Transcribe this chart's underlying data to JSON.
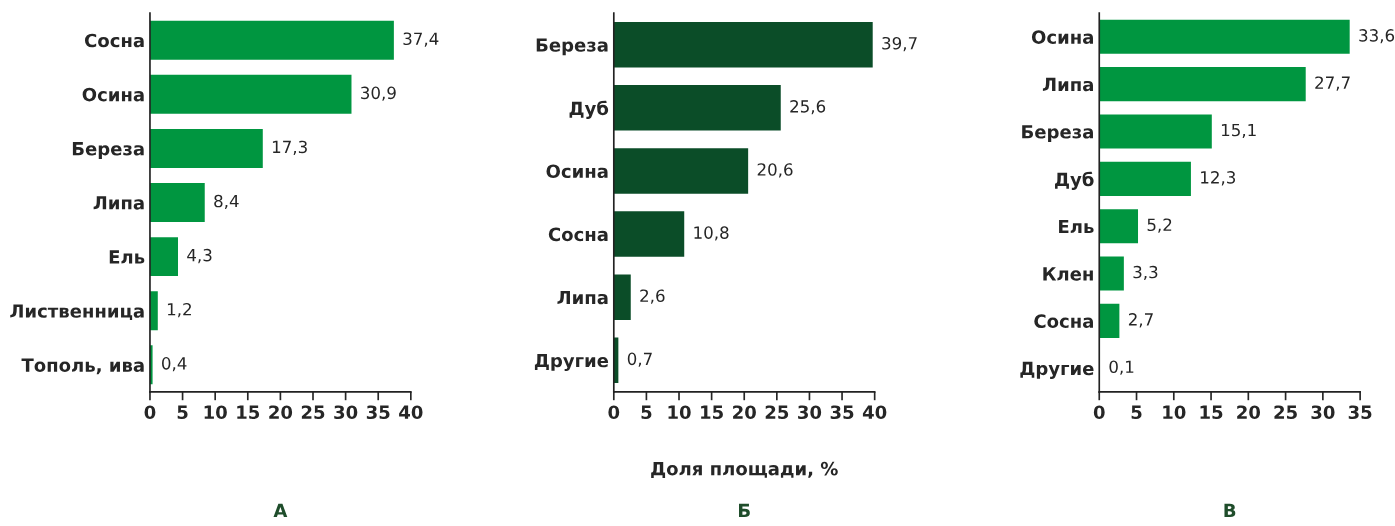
{
  "chart_data": [
    {
      "type": "bar",
      "orientation": "horizontal",
      "categories": [
        "Сосна",
        "Осина",
        "Береза",
        "Липа",
        "Ель",
        "Лиственница",
        "Тополь, ива"
      ],
      "values": [
        37.4,
        30.9,
        17.3,
        8.4,
        4.3,
        1.2,
        0.4
      ],
      "value_labels": [
        "37,4",
        "30,9",
        "17,3",
        "8,4",
        "4,3",
        "1,2",
        "0,4"
      ],
      "color": "#009640",
      "xlim": [
        0,
        40
      ],
      "xticks": [
        0,
        5,
        10,
        15,
        20,
        25,
        30,
        35,
        40
      ],
      "annotations": [
        "А"
      ]
    },
    {
      "type": "bar",
      "orientation": "horizontal",
      "categories": [
        "Береза",
        "Дуб",
        "Осина",
        "Сосна",
        "Липа",
        "Другие"
      ],
      "values": [
        39.7,
        25.6,
        20.6,
        10.8,
        2.6,
        0.7
      ],
      "value_labels": [
        "39,7",
        "25,6",
        "20,6",
        "10,8",
        "2,6",
        "0,7"
      ],
      "color": "#0b4d28",
      "xlim": [
        0,
        40
      ],
      "xticks": [
        0,
        5,
        10,
        15,
        20,
        25,
        30,
        35,
        40
      ],
      "xlabel": "Доля площади, %",
      "annotations": [
        "Б"
      ]
    },
    {
      "type": "bar",
      "orientation": "horizontal",
      "categories": [
        "Осина",
        "Липа",
        "Береза",
        "Дуб",
        "Ель",
        "Клен",
        "Сосна",
        "Другие"
      ],
      "values": [
        33.6,
        27.7,
        15.1,
        12.3,
        5.2,
        3.3,
        2.7,
        0.1
      ],
      "value_labels": [
        "33,6",
        "27,7",
        "15,1",
        "12,3",
        "5,2",
        "3,3",
        "2,7",
        "0,1"
      ],
      "color": "#009640",
      "xlim": [
        0,
        35
      ],
      "xticks": [
        0,
        5,
        10,
        15,
        20,
        25,
        30,
        35
      ],
      "annotations": [
        "В"
      ]
    }
  ]
}
